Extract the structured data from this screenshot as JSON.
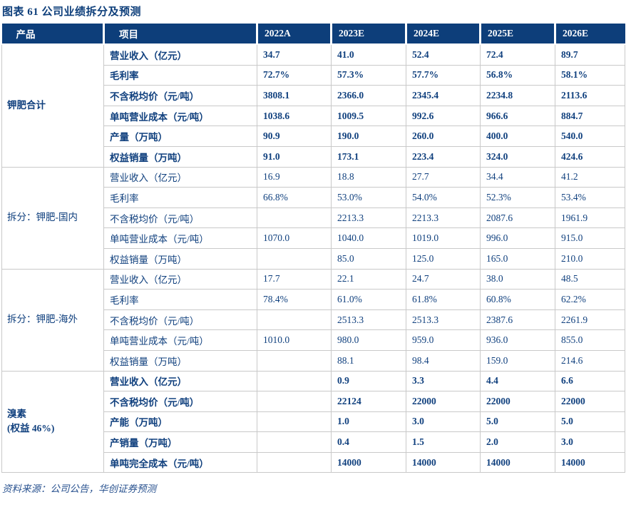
{
  "title": "图表 61  公司业绩拆分及预测",
  "source": "资料来源：公司公告，华创证券预测",
  "colors": {
    "header_bg": "#0D3E7A",
    "header_text": "#FFFFFF",
    "body_text": "#10407E",
    "grid_border": "#C9C9C9",
    "source_text": "#2A5390"
  },
  "table": {
    "product_header": "产品",
    "item_header": "项目",
    "year_headers": [
      "2022A",
      "2023E",
      "2024E",
      "2025E",
      "2026E"
    ],
    "groups": [
      {
        "product": "钾肥合计",
        "product_line2": "",
        "bold": true,
        "rows": [
          {
            "item": "营业收入（亿元）",
            "values": [
              "34.7",
              "41.0",
              "52.4",
              "72.4",
              "89.7"
            ]
          },
          {
            "item": "毛利率",
            "values": [
              "72.7%",
              "57.3%",
              "57.7%",
              "56.8%",
              "58.1%"
            ]
          },
          {
            "item": "不含税均价（元/吨）",
            "values": [
              "3808.1",
              "2366.0",
              "2345.4",
              "2234.8",
              "2113.6"
            ]
          },
          {
            "item": "单吨营业成本（元/吨）",
            "values": [
              "1038.6",
              "1009.5",
              "992.6",
              "966.6",
              "884.7"
            ]
          },
          {
            "item": "产量（万吨）",
            "values": [
              "90.9",
              "190.0",
              "260.0",
              "400.0",
              "540.0"
            ]
          },
          {
            "item": "权益销量（万吨）",
            "values": [
              "91.0",
              "173.1",
              "223.4",
              "324.0",
              "424.6"
            ]
          }
        ]
      },
      {
        "product": "拆分：钾肥-国内",
        "product_line2": "",
        "bold": false,
        "rows": [
          {
            "item": "营业收入（亿元）",
            "values": [
              "16.9",
              "18.8",
              "27.7",
              "34.4",
              "41.2"
            ]
          },
          {
            "item": "毛利率",
            "values": [
              "66.8%",
              "53.0%",
              "54.0%",
              "52.3%",
              "53.4%"
            ]
          },
          {
            "item": "不含税均价（元/吨）",
            "values": [
              "",
              "2213.3",
              "2213.3",
              "2087.6",
              "1961.9"
            ]
          },
          {
            "item": "单吨营业成本（元/吨）",
            "values": [
              "1070.0",
              "1040.0",
              "1019.0",
              "996.0",
              "915.0"
            ]
          },
          {
            "item": "权益销量（万吨）",
            "values": [
              "",
              "85.0",
              "125.0",
              "165.0",
              "210.0"
            ]
          }
        ]
      },
      {
        "product": "拆分：钾肥-海外",
        "product_line2": "",
        "bold": false,
        "rows": [
          {
            "item": "营业收入（亿元）",
            "values": [
              "17.7",
              "22.1",
              "24.7",
              "38.0",
              "48.5"
            ]
          },
          {
            "item": "毛利率",
            "values": [
              "78.4%",
              "61.0%",
              "61.8%",
              "60.8%",
              "62.2%"
            ]
          },
          {
            "item": "不含税均价（元/吨）",
            "values": [
              "",
              "2513.3",
              "2513.3",
              "2387.6",
              "2261.9"
            ]
          },
          {
            "item": "单吨营业成本（元/吨）",
            "values": [
              "1010.0",
              "980.0",
              "959.0",
              "936.0",
              "855.0"
            ]
          },
          {
            "item": "权益销量（万吨）",
            "values": [
              "",
              "88.1",
              "98.4",
              "159.0",
              "214.6"
            ]
          }
        ]
      },
      {
        "product": "溴素",
        "product_line2": "(权益 46%)",
        "bold": true,
        "rows": [
          {
            "item": "营业收入（亿元）",
            "values": [
              "",
              "0.9",
              "3.3",
              "4.4",
              "6.6"
            ]
          },
          {
            "item": "不含税均价（元/吨）",
            "values": [
              "",
              "22124",
              "22000",
              "22000",
              "22000"
            ]
          },
          {
            "item": "产能（万吨）",
            "values": [
              "",
              "1.0",
              "3.0",
              "5.0",
              "5.0"
            ]
          },
          {
            "item": "产销量（万吨）",
            "values": [
              "",
              "0.4",
              "1.5",
              "2.0",
              "3.0"
            ]
          },
          {
            "item": "单吨完全成本（元/吨）",
            "values": [
              "",
              "14000",
              "14000",
              "14000",
              "14000"
            ]
          }
        ]
      }
    ]
  }
}
